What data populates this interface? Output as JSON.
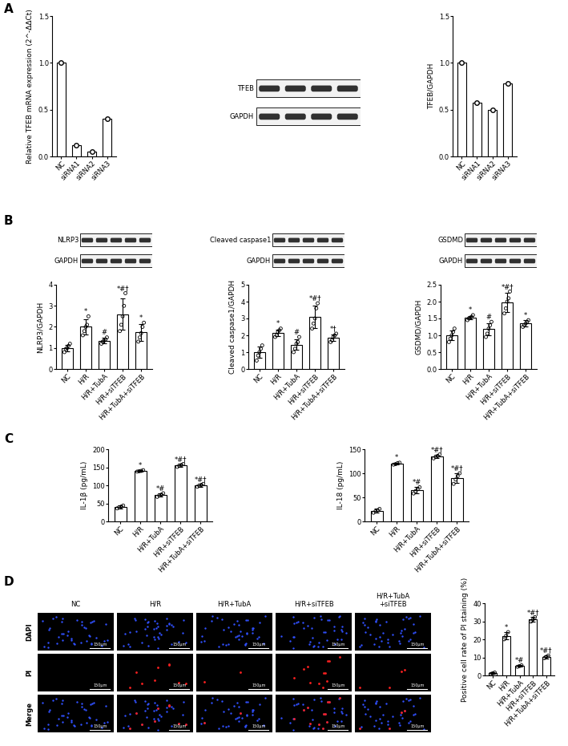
{
  "panels": [
    "A",
    "B",
    "C",
    "D"
  ],
  "chart_data": [
    {
      "type": "bar",
      "ylabel": "Relative TFEB mRNA expression (2^-ΔΔCt)",
      "categories": [
        "NC",
        "siRNA1",
        "siRNA2",
        "siRNA3"
      ],
      "values": [
        1.0,
        0.12,
        0.05,
        0.4
      ],
      "color": "#ffffff",
      "marker": "o",
      "grid": false,
      "ylim": [
        0,
        1.5
      ],
      "yticks": [
        {
          "value": 0,
          "label": "0.0"
        },
        0.5,
        {
          "value": 1,
          "label": "1.0"
        },
        1.5
      ]
    },
    {
      "type": "bar",
      "ylabel": "TFEB/GAPDH",
      "categories": [
        "NC",
        "siRNA1",
        "siRNA2",
        "siRNA3"
      ],
      "values": [
        1.0,
        0.57,
        0.5,
        0.78
      ],
      "color": "#ffffff",
      "marker": "o",
      "grid": false,
      "ylim": [
        0,
        1.5
      ],
      "yticks": [
        {
          "value": 0,
          "label": "0.0"
        },
        0.5,
        {
          "value": 1,
          "label": "1.0"
        },
        1.5
      ]
    },
    {
      "type": "bar",
      "ylabel": "NLRP3/GAPDH",
      "categories": [
        "NC",
        "H/R",
        "H/R+TubA",
        "H/R+siTFEB",
        "H/R+TubA+siTFEB"
      ],
      "values": [
        1.0,
        2.0,
        1.35,
        2.6,
        1.75
      ],
      "errors": [
        0.15,
        0.35,
        0.12,
        0.75,
        0.4
      ],
      "points": [
        [
          0.8,
          0.95,
          1.0,
          1.1,
          1.2
        ],
        [
          1.6,
          1.8,
          2.0,
          2.1,
          2.5
        ],
        [
          1.2,
          1.3,
          1.35,
          1.4,
          1.5
        ],
        [
          1.8,
          2.1,
          2.5,
          3.0,
          3.6
        ],
        [
          1.3,
          1.5,
          1.7,
          2.0,
          2.2
        ]
      ],
      "significance": [
        null,
        "*",
        "#",
        "*#†",
        "*"
      ],
      "color": "#ffffff",
      "grid": false,
      "ylim": [
        0,
        4
      ],
      "yticks": [
        0,
        1,
        2,
        3,
        4
      ]
    },
    {
      "type": "bar",
      "ylabel": "Cleaved caspase1/GAPDH",
      "categories": [
        "NC",
        "H/R",
        "H/R+TubA",
        "H/R+siTFEB",
        "H/R+TubA+siTFEB"
      ],
      "values": [
        1.0,
        2.15,
        1.45,
        3.1,
        1.85
      ],
      "errors": [
        0.35,
        0.2,
        0.3,
        0.65,
        0.2
      ],
      "points": [
        [
          0.5,
          0.8,
          1.0,
          1.2,
          1.4
        ],
        [
          1.9,
          2.0,
          2.2,
          2.3,
          2.4
        ],
        [
          1.0,
          1.2,
          1.5,
          1.6,
          1.9
        ],
        [
          2.4,
          2.7,
          3.0,
          3.6,
          3.9
        ],
        [
          1.6,
          1.7,
          1.9,
          2.0,
          2.1
        ]
      ],
      "significance": [
        null,
        "*",
        "#",
        "*#†",
        "*†"
      ],
      "color": "#ffffff",
      "grid": false,
      "ylim": [
        0,
        5
      ],
      "yticks": [
        0,
        1,
        2,
        3,
        4,
        5
      ]
    },
    {
      "type": "bar",
      "ylabel": "GSDMD/GAPDH",
      "categories": [
        "NC",
        "H/R",
        "H/R+TubA",
        "H/R+siTFEB",
        "H/R+TubA+siTFEB"
      ],
      "values": [
        1.0,
        1.52,
        1.18,
        1.98,
        1.35
      ],
      "errors": [
        0.15,
        0.05,
        0.18,
        0.28,
        0.1
      ],
      "points": [
        [
          0.8,
          0.9,
          1.0,
          1.1,
          1.2
        ],
        [
          1.45,
          1.5,
          1.52,
          1.55,
          1.6
        ],
        [
          0.95,
          1.05,
          1.2,
          1.3,
          1.4
        ],
        [
          1.65,
          1.8,
          2.0,
          2.1,
          2.3
        ],
        [
          1.25,
          1.3,
          1.35,
          1.4,
          1.45
        ]
      ],
      "significance": [
        null,
        "*",
        "#",
        "*#†",
        "*"
      ],
      "color": "#ffffff",
      "grid": false,
      "ylim": [
        0,
        2.5
      ],
      "yticks": [
        {
          "value": 0,
          "label": "0.0"
        },
        0.5,
        {
          "value": 1,
          "label": "1.0"
        },
        1.5,
        {
          "value": 2,
          "label": "2.0"
        },
        2.5
      ]
    },
    {
      "type": "bar",
      "ylabel": "IL-1β (pg/mL)",
      "categories": [
        "NC",
        "H/R",
        "H/R+TubA",
        "H/R+siTFEB",
        "H/R+TubA+siTFEB"
      ],
      "values": [
        40,
        140,
        73,
        155,
        100
      ],
      "errors": [
        4,
        2,
        5,
        4,
        4
      ],
      "points": [
        [
          36,
          39,
          41,
          44
        ],
        [
          138,
          139,
          140,
          142
        ],
        [
          68,
          72,
          74,
          78
        ],
        [
          151,
          154,
          156,
          159
        ],
        [
          96,
          99,
          101,
          104
        ]
      ],
      "significance": [
        null,
        "*",
        "*#",
        "*#†",
        "*#†"
      ],
      "color": "#ffffff",
      "grid": false,
      "ylim": [
        0,
        200
      ],
      "yticks": [
        0,
        50,
        100,
        150,
        200
      ]
    },
    {
      "type": "bar",
      "ylabel": "IL-18 (pg/mL)",
      "categories": [
        "NC",
        "H/R",
        "H/R+TubA",
        "H/R+siTFEB",
        "H/R+TubA+siTFEB"
      ],
      "values": [
        22,
        120,
        65,
        135,
        90
      ],
      "errors": [
        4,
        2,
        6,
        3,
        10
      ],
      "points": [
        [
          18,
          21,
          23,
          26
        ],
        [
          118,
          119,
          121,
          122
        ],
        [
          58,
          63,
          67,
          71
        ],
        [
          131,
          134,
          136,
          139
        ],
        [
          78,
          87,
          94,
          100
        ]
      ],
      "significance": [
        null,
        "*",
        "*#",
        "*#†",
        "*#†"
      ],
      "color": "#ffffff",
      "grid": false,
      "ylim": [
        0,
        150
      ],
      "yticks": [
        0,
        50,
        100,
        150
      ]
    },
    {
      "type": "bar",
      "ylabel": "Positive cell rate of PI staining (%)",
      "categories": [
        "NC",
        "H/R",
        "H/R+TubA",
        "H/R+siTFEB",
        "H/R+TubA+siTFEB"
      ],
      "values": [
        1.2,
        22,
        5.2,
        31,
        10.3
      ],
      "errors": [
        0.5,
        1.8,
        0.5,
        1.3,
        0.8
      ],
      "points": [
        [
          0.8,
          1.2,
          1.6
        ],
        [
          20,
          22,
          24
        ],
        [
          4.8,
          5.2,
          5.6
        ],
        [
          29.8,
          31,
          32.3
        ],
        [
          9.6,
          10.3,
          11
        ]
      ],
      "significance": [
        null,
        "*",
        "*#",
        "*#†",
        "*#†"
      ],
      "color": "#ffffff",
      "grid": false,
      "ylim": [
        0,
        40
      ],
      "yticks": [
        0,
        10,
        20,
        30,
        40
      ]
    }
  ],
  "blots": [
    {
      "labels": [
        "TFEB",
        "GAPDH"
      ],
      "lanes": 4
    },
    {
      "labels": [
        "NLRP3",
        "GAPDH"
      ],
      "lanes": 5
    },
    {
      "labels": [
        "Cleaved caspase1",
        "GAPDH"
      ],
      "lanes": 5
    },
    {
      "labels": [
        "GSDMD",
        "GAPDH"
      ],
      "lanes": 5
    }
  ],
  "micrographs": {
    "columns": [
      "NC",
      "H/R",
      "H/R+TubA",
      "H/R+siTFEB",
      "H/R+TubA\n+siTFEB"
    ],
    "rows": [
      "DAPI",
      "PI",
      "Merge"
    ],
    "scale_bar": "150μm"
  }
}
